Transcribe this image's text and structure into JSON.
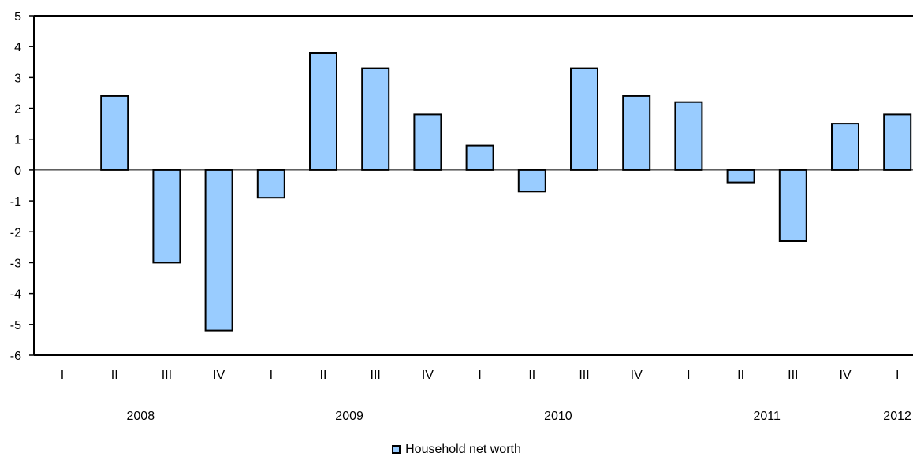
{
  "chart_data": {
    "type": "bar",
    "title": "",
    "xlabel": "",
    "ylabel": "",
    "ylim": [
      -6,
      5
    ],
    "yticks": [
      5,
      4,
      3,
      2,
      1,
      0,
      -1,
      -2,
      -3,
      -4,
      -5,
      -6
    ],
    "categories": [
      "I",
      "II",
      "III",
      "IV",
      "I",
      "II",
      "III",
      "IV",
      "I",
      "II",
      "III",
      "IV",
      "I",
      "II",
      "III",
      "IV",
      "I"
    ],
    "year_labels": [
      {
        "label": "2008",
        "start": 0,
        "end": 3
      },
      {
        "label": "2009",
        "start": 4,
        "end": 7
      },
      {
        "label": "2010",
        "start": 8,
        "end": 11
      },
      {
        "label": "2011",
        "start": 12,
        "end": 15
      },
      {
        "label": "2012",
        "start": 16,
        "end": 16
      }
    ],
    "series": [
      {
        "name": "Household net worth",
        "color": "#99ccff",
        "values": [
          null,
          2.4,
          -3.0,
          -5.2,
          -0.9,
          3.8,
          3.3,
          1.8,
          0.8,
          -0.7,
          3.3,
          2.4,
          2.2,
          -0.4,
          -2.3,
          1.5,
          1.8
        ]
      }
    ],
    "grid": false,
    "legend_position": "bottom"
  }
}
